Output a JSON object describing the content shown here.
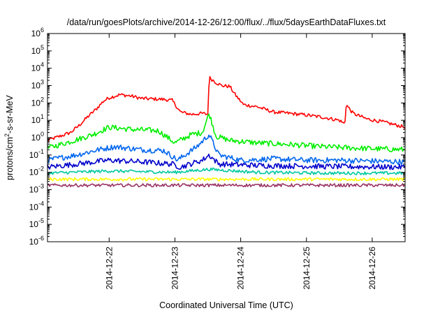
{
  "chart_data": {
    "type": "line",
    "title": "/data/run/goesPlots/archive/2014-12-26/12:00/flux/../flux/5daysEarthDataFluxes.txt",
    "xlabel": "Coordinated Universal Time (UTC)",
    "ylabel": "protons/cm²-s-sr-MeV",
    "ylabel_parts": {
      "pre": "protons/cm",
      "sup": "2",
      "post": "-s-sr-MeV"
    },
    "x_range": [
      "2014-12-21 01:30",
      "2014-12-26 12:00"
    ],
    "y_scale": "log",
    "ylim": [
      1e-06,
      1000000.0
    ],
    "y_ticks": [
      {
        "value": 1e-06,
        "base": "10",
        "exp": "-6"
      },
      {
        "value": 1e-05,
        "base": "10",
        "exp": "-5"
      },
      {
        "value": 0.0001,
        "base": "10",
        "exp": "-4"
      },
      {
        "value": 0.001,
        "base": "10",
        "exp": "-3"
      },
      {
        "value": 0.01,
        "base": "10",
        "exp": "-2"
      },
      {
        "value": 0.1,
        "base": "10",
        "exp": "-1"
      },
      {
        "value": 1,
        "base": "10",
        "exp": "0"
      },
      {
        "value": 10,
        "base": "10",
        "exp": "1"
      },
      {
        "value": 100,
        "base": "10",
        "exp": "2"
      },
      {
        "value": 1000,
        "base": "10",
        "exp": "3"
      },
      {
        "value": 10000,
        "base": "10",
        "exp": "4"
      },
      {
        "value": 100000,
        "base": "10",
        "exp": "5"
      },
      {
        "value": 1000000,
        "base": "10",
        "exp": "6"
      }
    ],
    "x_ticks": [
      "2014-12-22",
      "2014-12-23",
      "2014-12-24",
      "2014-12-25",
      "2014-12-26"
    ],
    "grid": false,
    "legend": "none",
    "series": [
      {
        "color": "#ff0000",
        "points": [
          [
            "2014-12-21 01:30",
            0.7
          ],
          [
            "2014-12-21 06:00",
            1.2
          ],
          [
            "2014-12-21 10:00",
            2.0
          ],
          [
            "2014-12-21 13:00",
            5.0
          ],
          [
            "2014-12-21 16:00",
            15
          ],
          [
            "2014-12-21 19:00",
            40
          ],
          [
            "2014-12-21 22:00",
            130
          ],
          [
            "2014-12-22 00:00",
            200
          ],
          [
            "2014-12-22 04:00",
            300
          ],
          [
            "2014-12-22 08:00",
            250
          ],
          [
            "2014-12-22 12:00",
            180
          ],
          [
            "2014-12-22 16:00",
            170
          ],
          [
            "2014-12-22 20:00",
            160
          ],
          [
            "2014-12-22 23:00",
            140
          ],
          [
            "2014-12-23 02:00",
            30
          ],
          [
            "2014-12-23 06:00",
            22
          ],
          [
            "2014-12-23 10:00",
            25
          ],
          [
            "2014-12-23 12:00",
            22
          ],
          [
            "2014-12-23 12:30",
            3000
          ],
          [
            "2014-12-23 15:00",
            1500
          ],
          [
            "2014-12-23 17:00",
            1000
          ],
          [
            "2014-12-23 20:00",
            900
          ],
          [
            "2014-12-23 22:00",
            300
          ],
          [
            "2014-12-24 01:00",
            80
          ],
          [
            "2014-12-24 06:00",
            60
          ],
          [
            "2014-12-24 12:00",
            30
          ],
          [
            "2014-12-24 18:00",
            25
          ],
          [
            "2014-12-25 00:00",
            20
          ],
          [
            "2014-12-25 06:00",
            15
          ],
          [
            "2014-12-25 12:00",
            10
          ],
          [
            "2014-12-25 14:00",
            6
          ],
          [
            "2014-12-25 14:30",
            80
          ],
          [
            "2014-12-25 17:00",
            25
          ],
          [
            "2014-12-25 22:00",
            12
          ],
          [
            "2014-12-26 04:00",
            8
          ],
          [
            "2014-12-26 12:00",
            4
          ]
        ]
      },
      {
        "color": "#00ee00",
        "points": [
          [
            "2014-12-21 01:30",
            0.25
          ],
          [
            "2014-12-21 10:00",
            0.6
          ],
          [
            "2014-12-21 18:00",
            1.5
          ],
          [
            "2014-12-22 00:00",
            4
          ],
          [
            "2014-12-22 08:00",
            3
          ],
          [
            "2014-12-22 18:00",
            2.5
          ],
          [
            "2014-12-23 00:00",
            0.5
          ],
          [
            "2014-12-23 06:00",
            1.5
          ],
          [
            "2014-12-23 10:00",
            2.0
          ],
          [
            "2014-12-23 12:30",
            25
          ],
          [
            "2014-12-23 15:00",
            1.2
          ],
          [
            "2014-12-23 20:00",
            0.7
          ],
          [
            "2014-12-24 06:00",
            0.5
          ],
          [
            "2014-12-24 18:00",
            0.4
          ],
          [
            "2014-12-25 06:00",
            0.3
          ],
          [
            "2014-12-25 18:00",
            0.25
          ],
          [
            "2014-12-26 12:00",
            0.2
          ]
        ]
      },
      {
        "color": "#0066ee",
        "points": [
          [
            "2014-12-21 01:30",
            0.05
          ],
          [
            "2014-12-21 12:00",
            0.1
          ],
          [
            "2014-12-21 20:00",
            0.2
          ],
          [
            "2014-12-22 02:00",
            0.3
          ],
          [
            "2014-12-22 12:00",
            0.2
          ],
          [
            "2014-12-22 20:00",
            0.18
          ],
          [
            "2014-12-23 01:00",
            0.05
          ],
          [
            "2014-12-23 08:00",
            0.3
          ],
          [
            "2014-12-23 12:30",
            1.5
          ],
          [
            "2014-12-23 16:00",
            0.1
          ],
          [
            "2014-12-24 00:00",
            0.05
          ],
          [
            "2014-12-24 12:00",
            0.06
          ],
          [
            "2014-12-25 00:00",
            0.05
          ],
          [
            "2014-12-25 12:00",
            0.05
          ],
          [
            "2014-12-26 12:00",
            0.04
          ]
        ]
      },
      {
        "color": "#0000cc",
        "points": [
          [
            "2014-12-21 01:30",
            0.02
          ],
          [
            "2014-12-21 12:00",
            0.03
          ],
          [
            "2014-12-22 00:00",
            0.05
          ],
          [
            "2014-12-22 12:00",
            0.04
          ],
          [
            "2014-12-22 23:00",
            0.03
          ],
          [
            "2014-12-23 02:00",
            0.02
          ],
          [
            "2014-12-23 10:00",
            0.05
          ],
          [
            "2014-12-23 12:30",
            0.1
          ],
          [
            "2014-12-23 16:00",
            0.03
          ],
          [
            "2014-12-24 06:00",
            0.025
          ],
          [
            "2014-12-25 06:00",
            0.022
          ],
          [
            "2014-12-26 12:00",
            0.02
          ]
        ]
      },
      {
        "color": "#00c8a0",
        "points": [
          [
            "2014-12-21 01:30",
            0.009
          ],
          [
            "2014-12-22 00:00",
            0.012
          ],
          [
            "2014-12-23 00:00",
            0.01
          ],
          [
            "2014-12-23 12:30",
            0.015
          ],
          [
            "2014-12-24 06:00",
            0.01
          ],
          [
            "2014-12-25 06:00",
            0.009
          ],
          [
            "2014-12-26 12:00",
            0.009
          ]
        ]
      },
      {
        "color": "#ffff00",
        "points": [
          [
            "2014-12-21 01:30",
            0.004
          ],
          [
            "2014-12-22 12:00",
            0.004
          ],
          [
            "2014-12-24 00:00",
            0.004
          ],
          [
            "2014-12-26 12:00",
            0.004
          ]
        ]
      },
      {
        "color": "#993366",
        "points": [
          [
            "2014-12-21 01:30",
            0.0018
          ],
          [
            "2014-12-22 12:00",
            0.0018
          ],
          [
            "2014-12-24 00:00",
            0.0018
          ],
          [
            "2014-12-26 12:00",
            0.0018
          ]
        ]
      }
    ]
  }
}
